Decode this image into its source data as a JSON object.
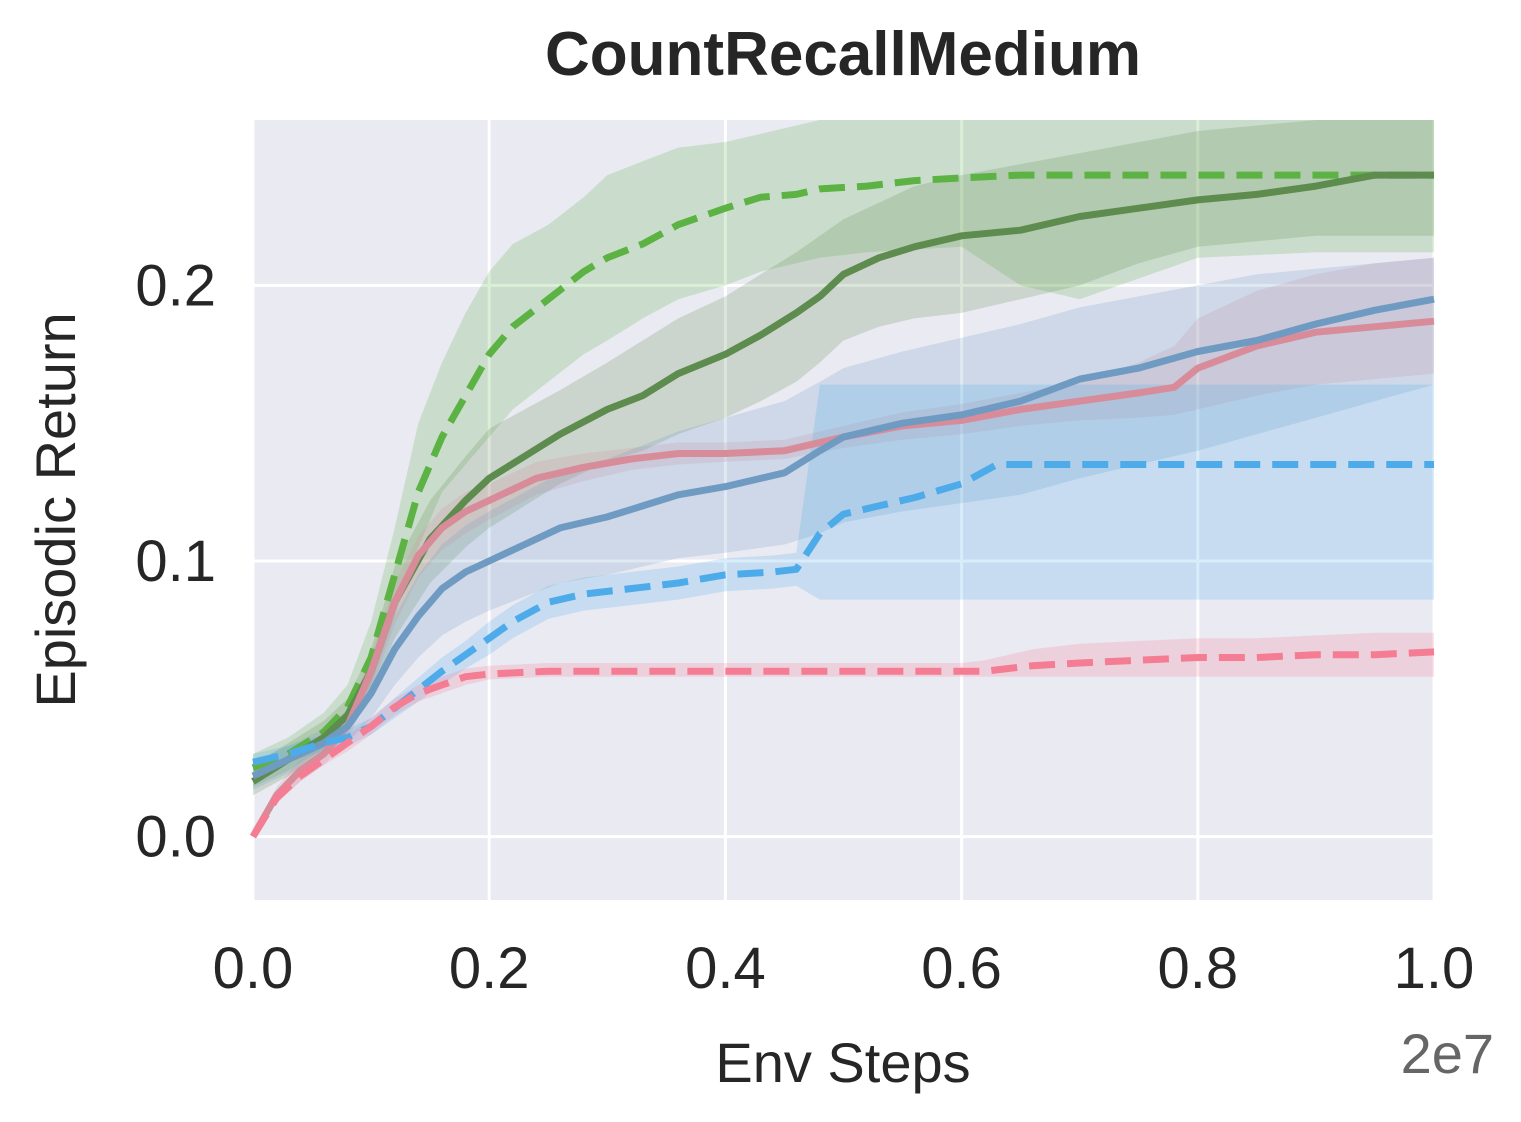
{
  "chart_data": {
    "type": "line",
    "title": "CountRecallMedium",
    "xlabel": "Env Steps",
    "ylabel": "Episodic Return",
    "x_offset_label": "2e7",
    "xlim": [
      0.0,
      1.0
    ],
    "ylim": [
      -0.023,
      0.26
    ],
    "xticks": [
      0.0,
      0.2,
      0.4,
      0.6,
      0.8,
      1.0
    ],
    "xtick_labels": [
      "0.0",
      "0.2",
      "0.4",
      "0.6",
      "0.8",
      "1.0"
    ],
    "yticks": [
      0.0,
      0.1,
      0.2
    ],
    "ytick_labels": [
      "0.0",
      "0.1",
      "0.2"
    ],
    "grid": true,
    "legend": "none",
    "background": "#EAEAF2",
    "series": [
      {
        "color": "#5CB344",
        "style": "dashed",
        "x": [
          0.0,
          0.03,
          0.06,
          0.08,
          0.1,
          0.12,
          0.14,
          0.16,
          0.18,
          0.2,
          0.22,
          0.25,
          0.28,
          0.3,
          0.33,
          0.36,
          0.4,
          0.43,
          0.46,
          0.48,
          0.52,
          0.56,
          0.6,
          0.65,
          0.7,
          0.8,
          0.9,
          1.0
        ],
        "y": [
          0.025,
          0.03,
          0.038,
          0.047,
          0.065,
          0.095,
          0.125,
          0.145,
          0.16,
          0.175,
          0.185,
          0.195,
          0.205,
          0.21,
          0.215,
          0.222,
          0.228,
          0.232,
          0.233,
          0.235,
          0.236,
          0.238,
          0.239,
          0.24,
          0.24,
          0.24,
          0.24,
          0.24
        ],
        "band_low": [
          0.018,
          0.024,
          0.032,
          0.04,
          0.055,
          0.08,
          0.105,
          0.125,
          0.135,
          0.145,
          0.155,
          0.165,
          0.175,
          0.18,
          0.188,
          0.195,
          0.2,
          0.205,
          0.208,
          0.21,
          0.212,
          0.213,
          0.214,
          0.2,
          0.195,
          0.21,
          0.212,
          0.212
        ],
        "band_high": [
          0.03,
          0.036,
          0.045,
          0.055,
          0.078,
          0.112,
          0.15,
          0.172,
          0.19,
          0.205,
          0.215,
          0.222,
          0.232,
          0.24,
          0.245,
          0.25,
          0.252,
          0.255,
          0.258,
          0.26,
          0.26,
          0.26,
          0.26,
          0.26,
          0.26,
          0.26,
          0.26,
          0.26
        ]
      },
      {
        "color": "#5E8C4F",
        "style": "solid",
        "x": [
          0.0,
          0.03,
          0.06,
          0.08,
          0.1,
          0.12,
          0.15,
          0.18,
          0.2,
          0.23,
          0.26,
          0.3,
          0.33,
          0.36,
          0.4,
          0.43,
          0.46,
          0.48,
          0.5,
          0.53,
          0.56,
          0.6,
          0.65,
          0.7,
          0.75,
          0.8,
          0.85,
          0.9,
          0.95,
          1.0
        ],
        "y": [
          0.02,
          0.028,
          0.036,
          0.044,
          0.06,
          0.085,
          0.108,
          0.122,
          0.13,
          0.138,
          0.146,
          0.155,
          0.16,
          0.168,
          0.175,
          0.182,
          0.19,
          0.196,
          0.204,
          0.21,
          0.214,
          0.218,
          0.22,
          0.225,
          0.228,
          0.231,
          0.233,
          0.236,
          0.24,
          0.24
        ],
        "band_low": [
          0.015,
          0.022,
          0.03,
          0.038,
          0.052,
          0.072,
          0.092,
          0.105,
          0.112,
          0.12,
          0.128,
          0.136,
          0.14,
          0.146,
          0.152,
          0.158,
          0.165,
          0.172,
          0.18,
          0.185,
          0.188,
          0.19,
          0.195,
          0.2,
          0.208,
          0.214,
          0.216,
          0.218,
          0.218,
          0.218
        ],
        "band_high": [
          0.026,
          0.034,
          0.042,
          0.05,
          0.068,
          0.098,
          0.122,
          0.138,
          0.148,
          0.155,
          0.162,
          0.172,
          0.18,
          0.188,
          0.196,
          0.204,
          0.212,
          0.218,
          0.224,
          0.23,
          0.236,
          0.24,
          0.244,
          0.248,
          0.252,
          0.256,
          0.258,
          0.26,
          0.26,
          0.26
        ]
      },
      {
        "color": "#D88C9A",
        "style": "solid",
        "x": [
          0.0,
          0.02,
          0.04,
          0.06,
          0.08,
          0.1,
          0.12,
          0.14,
          0.16,
          0.18,
          0.2,
          0.24,
          0.28,
          0.32,
          0.36,
          0.4,
          0.45,
          0.5,
          0.55,
          0.6,
          0.65,
          0.7,
          0.75,
          0.78,
          0.8,
          0.85,
          0.9,
          0.95,
          1.0
        ],
        "y": [
          0.0,
          0.015,
          0.024,
          0.03,
          0.04,
          0.06,
          0.085,
          0.102,
          0.112,
          0.118,
          0.122,
          0.13,
          0.134,
          0.137,
          0.139,
          0.139,
          0.14,
          0.145,
          0.149,
          0.151,
          0.155,
          0.158,
          0.161,
          0.163,
          0.17,
          0.178,
          0.183,
          0.185,
          0.187
        ],
        "band_low": [
          0.0,
          0.012,
          0.02,
          0.026,
          0.035,
          0.053,
          0.077,
          0.094,
          0.104,
          0.11,
          0.115,
          0.124,
          0.129,
          0.133,
          0.135,
          0.136,
          0.137,
          0.141,
          0.144,
          0.146,
          0.149,
          0.151,
          0.152,
          0.153,
          0.155,
          0.16,
          0.164,
          0.166,
          0.168
        ],
        "band_high": [
          0.002,
          0.018,
          0.028,
          0.034,
          0.045,
          0.066,
          0.092,
          0.109,
          0.119,
          0.125,
          0.128,
          0.136,
          0.139,
          0.141,
          0.143,
          0.143,
          0.144,
          0.149,
          0.154,
          0.157,
          0.161,
          0.165,
          0.172,
          0.178,
          0.188,
          0.198,
          0.204,
          0.208,
          0.21
        ]
      },
      {
        "color": "#6F9BC2",
        "style": "solid",
        "x": [
          0.0,
          0.03,
          0.06,
          0.08,
          0.1,
          0.12,
          0.14,
          0.16,
          0.18,
          0.2,
          0.23,
          0.26,
          0.3,
          0.33,
          0.36,
          0.4,
          0.45,
          0.48,
          0.5,
          0.55,
          0.6,
          0.65,
          0.7,
          0.75,
          0.8,
          0.85,
          0.9,
          0.95,
          1.0
        ],
        "y": [
          0.022,
          0.028,
          0.034,
          0.04,
          0.052,
          0.068,
          0.08,
          0.09,
          0.096,
          0.1,
          0.106,
          0.112,
          0.116,
          0.12,
          0.124,
          0.127,
          0.132,
          0.14,
          0.145,
          0.15,
          0.153,
          0.158,
          0.166,
          0.17,
          0.176,
          0.18,
          0.186,
          0.191,
          0.195
        ],
        "band_low": [
          0.017,
          0.023,
          0.029,
          0.034,
          0.043,
          0.055,
          0.065,
          0.073,
          0.078,
          0.082,
          0.087,
          0.092,
          0.095,
          0.098,
          0.101,
          0.103,
          0.106,
          0.11,
          0.114,
          0.118,
          0.121,
          0.124,
          0.13,
          0.135,
          0.14,
          0.146,
          0.152,
          0.158,
          0.164
        ],
        "band_high": [
          0.027,
          0.033,
          0.039,
          0.046,
          0.061,
          0.08,
          0.095,
          0.106,
          0.113,
          0.118,
          0.125,
          0.132,
          0.137,
          0.142,
          0.147,
          0.152,
          0.158,
          0.165,
          0.17,
          0.176,
          0.181,
          0.186,
          0.192,
          0.196,
          0.2,
          0.204,
          0.206,
          0.208,
          0.21
        ]
      },
      {
        "color": "#4DABEA",
        "style": "dashed",
        "x": [
          0.0,
          0.03,
          0.06,
          0.08,
          0.1,
          0.13,
          0.16,
          0.18,
          0.2,
          0.22,
          0.25,
          0.28,
          0.32,
          0.36,
          0.4,
          0.44,
          0.46,
          0.48,
          0.5,
          0.53,
          0.56,
          0.6,
          0.63,
          0.7,
          0.8,
          0.9,
          1.0
        ],
        "y": [
          0.027,
          0.03,
          0.034,
          0.036,
          0.04,
          0.05,
          0.06,
          0.066,
          0.072,
          0.078,
          0.085,
          0.088,
          0.09,
          0.092,
          0.095,
          0.096,
          0.097,
          0.11,
          0.117,
          0.12,
          0.123,
          0.128,
          0.135,
          0.135,
          0.135,
          0.135,
          0.135
        ],
        "band_low": [
          0.024,
          0.027,
          0.031,
          0.033,
          0.037,
          0.046,
          0.055,
          0.061,
          0.066,
          0.072,
          0.079,
          0.082,
          0.084,
          0.086,
          0.089,
          0.09,
          0.091,
          0.086,
          0.086,
          0.086,
          0.086,
          0.086,
          0.086,
          0.086,
          0.086,
          0.086,
          0.086
        ],
        "band_high": [
          0.03,
          0.033,
          0.037,
          0.039,
          0.043,
          0.054,
          0.065,
          0.071,
          0.078,
          0.084,
          0.091,
          0.094,
          0.096,
          0.098,
          0.101,
          0.102,
          0.103,
          0.164,
          0.164,
          0.164,
          0.164,
          0.164,
          0.164,
          0.164,
          0.164,
          0.164,
          0.164
        ]
      },
      {
        "color": "#F47C93",
        "style": "dashed",
        "x": [
          0.0,
          0.02,
          0.04,
          0.06,
          0.08,
          0.1,
          0.12,
          0.14,
          0.16,
          0.18,
          0.2,
          0.25,
          0.3,
          0.4,
          0.5,
          0.6,
          0.62,
          0.66,
          0.7,
          0.75,
          0.8,
          0.85,
          0.9,
          0.95,
          1.0
        ],
        "y": [
          0.0,
          0.014,
          0.022,
          0.028,
          0.034,
          0.04,
          0.047,
          0.052,
          0.055,
          0.058,
          0.059,
          0.06,
          0.06,
          0.06,
          0.06,
          0.06,
          0.06,
          0.062,
          0.063,
          0.064,
          0.065,
          0.065,
          0.066,
          0.066,
          0.067
        ],
        "band_low": [
          0.0,
          0.012,
          0.02,
          0.026,
          0.031,
          0.037,
          0.044,
          0.049,
          0.052,
          0.055,
          0.057,
          0.058,
          0.058,
          0.058,
          0.058,
          0.058,
          0.058,
          0.058,
          0.058,
          0.058,
          0.058,
          0.058,
          0.058,
          0.058,
          0.058
        ],
        "band_high": [
          0.003,
          0.016,
          0.024,
          0.03,
          0.037,
          0.043,
          0.05,
          0.055,
          0.058,
          0.061,
          0.062,
          0.063,
          0.063,
          0.063,
          0.063,
          0.063,
          0.064,
          0.068,
          0.07,
          0.071,
          0.072,
          0.072,
          0.073,
          0.074,
          0.074
        ]
      }
    ]
  }
}
